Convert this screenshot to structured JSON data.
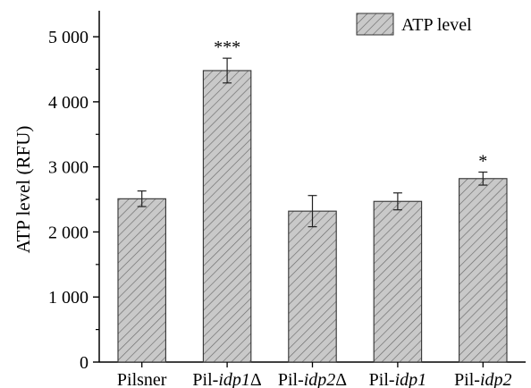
{
  "chart_data": {
    "type": "bar",
    "ylabel": "ATP level (RFU)",
    "xlabel": "",
    "ylim": [
      0,
      5400
    ],
    "yticks": [
      0,
      1000,
      2000,
      3000,
      4000,
      5000
    ],
    "ytick_labels": [
      "0",
      "1 000",
      "2 000",
      "3 000",
      "4 000",
      "5 000"
    ],
    "categories": [
      {
        "prefix": "Pilsner",
        "italic": "",
        "suffix": ""
      },
      {
        "prefix": "Pil-",
        "italic": "idp1",
        "suffix": "Δ"
      },
      {
        "prefix": "Pil-",
        "italic": "idp2",
        "suffix": "Δ"
      },
      {
        "prefix": "Pil-",
        "italic": "idp1",
        "suffix": ""
      },
      {
        "prefix": "Pil-",
        "italic": "idp2",
        "suffix": ""
      }
    ],
    "series": [
      {
        "name": "ATP level",
        "values": [
          2510,
          4480,
          2320,
          2470,
          2820
        ],
        "errors": [
          120,
          190,
          240,
          130,
          100
        ],
        "significance": [
          "",
          "***",
          "",
          "",
          "*"
        ]
      }
    ],
    "legend": {
      "position": "top-right"
    },
    "grid": false,
    "colors": {
      "bar_fill": "#c9c9c9",
      "hatch": "#6a6a6a",
      "edge": "#333333",
      "axis": "#000000"
    }
  }
}
